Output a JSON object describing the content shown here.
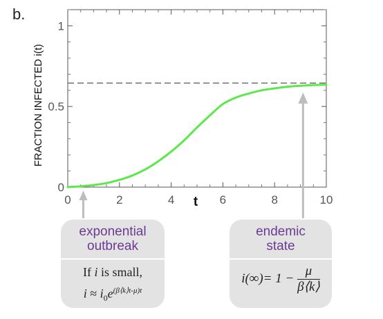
{
  "panel_label": "b.",
  "chart_data": {
    "type": "line",
    "title": "",
    "xlabel": "t",
    "ylabel": "FRACTION INFECTED i(t)",
    "xlim": [
      0,
      10
    ],
    "ylim": [
      0,
      1.1
    ],
    "x_ticks": [
      0,
      2,
      4,
      6,
      8,
      10
    ],
    "x_tick_labels": [
      "0",
      "2",
      "4",
      "6",
      "8",
      "10"
    ],
    "y_ticks": [
      0,
      0.5,
      1
    ],
    "y_tick_labels": [
      "0",
      "0.5",
      "1"
    ],
    "grid": false,
    "series": [
      {
        "color": "#5ce84a",
        "x": [
          0,
          0.5,
          1,
          1.5,
          2,
          2.5,
          3,
          3.5,
          4,
          4.5,
          5,
          5.5,
          6,
          6.5,
          7,
          7.5,
          8,
          8.5,
          9,
          9.5,
          10
        ],
        "y": [
          0.0,
          0.005,
          0.013,
          0.025,
          0.045,
          0.072,
          0.11,
          0.16,
          0.22,
          0.29,
          0.37,
          0.445,
          0.515,
          0.555,
          0.58,
          0.6,
          0.612,
          0.622,
          0.628,
          0.633,
          0.635
        ]
      }
    ],
    "reference_lines": [
      {
        "orientation": "horizontal",
        "y": 0.645,
        "style": "dashed",
        "color": "#666666"
      }
    ],
    "annotations": [
      {
        "id": "exponential",
        "x": 0.6,
        "heading": [
          "exponential",
          "outbreak"
        ],
        "body_line1": "If i is small,",
        "formula": {
          "lhs": "i",
          "approx": "≈",
          "i0": "i",
          "sub": "0",
          "e": "e",
          "exponent": "(β⟨k⟩t-μ)t"
        }
      },
      {
        "id": "endemic",
        "x": 9.1,
        "heading": [
          "endemic",
          "state"
        ],
        "formula": {
          "lhs": "i(∞)= 1 −",
          "numerator": "μ",
          "denominator": "β⟨k⟩"
        }
      }
    ],
    "colors": {
      "curve": "#5ce84a",
      "arrow": "#bdbdbd",
      "box": "#e3e3e3",
      "heading": "#6b3a93"
    }
  }
}
